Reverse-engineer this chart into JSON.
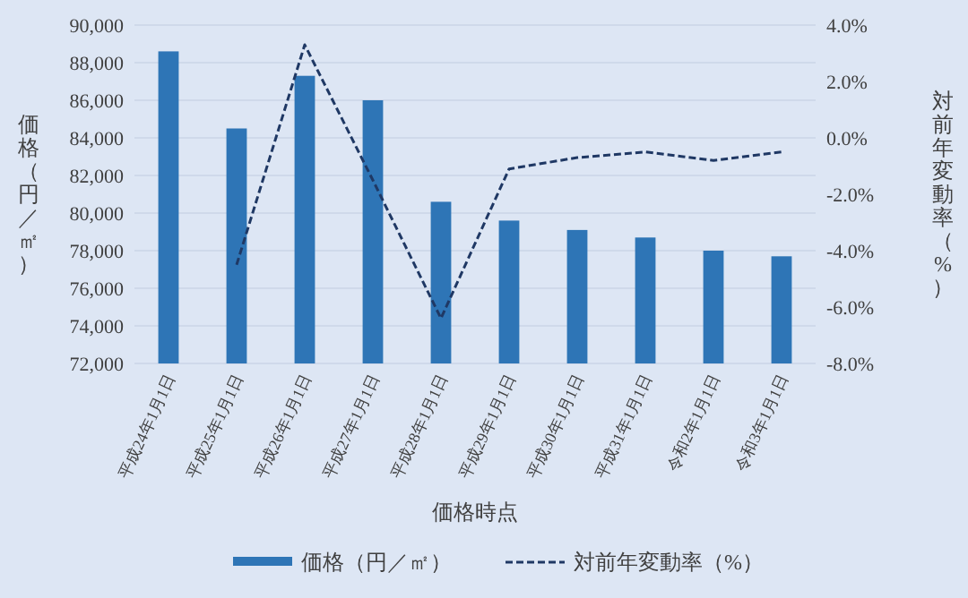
{
  "chart_data": {
    "type": "bar",
    "xlabel": "価格時点",
    "ylabel": "価格（円／㎡）",
    "y2label": "対前年変動率（%）",
    "categories": [
      "平成24年1月1日",
      "平成25年1月1日",
      "平成26年1月1日",
      "平成27年1月1日",
      "平成28年1月1日",
      "平成29年1月1日",
      "平成30年1月1日",
      "平成31年1月1日",
      "令和2年1月1日",
      "令和3年1月1日"
    ],
    "series": [
      {
        "name": "価格（円／㎡）",
        "color": "#2e75b6",
        "values": [
          88600,
          84500,
          87300,
          86000,
          80600,
          79600,
          79100,
          78700,
          78000,
          77700
        ]
      },
      {
        "name": "対前年変動率（%）",
        "type": "line",
        "axis": "y2",
        "line_style": "dashed",
        "marker": "none",
        "color": "#1f3864",
        "values": [
          null,
          -4.5,
          3.3,
          -1.5,
          -6.4,
          -1.1,
          -0.7,
          -0.5,
          -0.8,
          -0.5
        ]
      }
    ],
    "ylim": [
      72000,
      90000
    ],
    "yticks": [
      {
        "value": 72000,
        "label": "72,000"
      },
      {
        "value": 74000,
        "label": "74,000"
      },
      {
        "value": 76000,
        "label": "76,000"
      },
      {
        "value": 78000,
        "label": "78,000"
      },
      {
        "value": 80000,
        "label": "80,000"
      },
      {
        "value": 82000,
        "label": "82,000"
      },
      {
        "value": 84000,
        "label": "84,000"
      },
      {
        "value": 86000,
        "label": "86,000"
      },
      {
        "value": 88000,
        "label": "88,000"
      },
      {
        "value": 90000,
        "label": "90,000"
      }
    ],
    "y2lim": [
      -8,
      4
    ],
    "y2ticks": [
      {
        "value": -8,
        "label": "-8.0%"
      },
      {
        "value": -6,
        "label": "-6.0%"
      },
      {
        "value": -4,
        "label": "-4.0%"
      },
      {
        "value": -2,
        "label": "-2.0%"
      },
      {
        "value": 0,
        "label": "0.0%"
      },
      {
        "value": 2,
        "label": "2.0%"
      },
      {
        "value": 4,
        "label": "4.0%"
      }
    ],
    "grid": "y",
    "legend": "bottom"
  }
}
